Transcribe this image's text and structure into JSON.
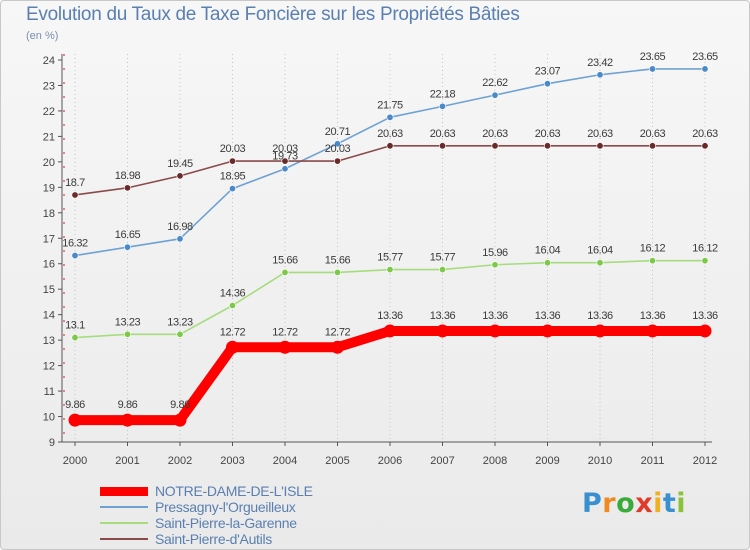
{
  "title": "Evolution du Taux de Taxe Foncière sur les Propriétés Bâties",
  "unit_label": "(en %)",
  "logo": {
    "letters": [
      {
        "ch": "P",
        "color": "#3a8fd0"
      },
      {
        "ch": "r",
        "color": "#f08a20"
      },
      {
        "ch": "o",
        "color": "#3aaa3a"
      },
      {
        "ch": "x",
        "color": "#e03a2a"
      },
      {
        "ch": "i",
        "color": "#f0b020"
      },
      {
        "ch": "t",
        "color": "#3a8fd0"
      },
      {
        "ch": "i",
        "color": "#8ac23a"
      }
    ]
  },
  "chart_data": {
    "type": "line",
    "title": "Evolution du Taux de Taxe Foncière sur les Propriétés Bâties",
    "ylabel": "(en %)",
    "xlabel": "",
    "x": [
      "2000",
      "2001",
      "2002",
      "2003",
      "2004",
      "2005",
      "2006",
      "2007",
      "2008",
      "2009",
      "2010",
      "2011",
      "2012"
    ],
    "ylim": [
      9,
      24
    ],
    "yticks": [
      9,
      10,
      11,
      12,
      13,
      14,
      15,
      16,
      17,
      18,
      19,
      20,
      21,
      22,
      23,
      24
    ],
    "grid": "vertical dotted",
    "legend_position": "bottom-left",
    "series": [
      {
        "name": "NOTRE-DAME-DE-L'ISLE",
        "color": "#ff0000",
        "emphasis": true,
        "values": [
          9.86,
          9.86,
          9.86,
          12.72,
          12.72,
          12.72,
          13.36,
          13.36,
          13.36,
          13.36,
          13.36,
          13.36,
          13.36
        ],
        "labels": [
          "9.86",
          "9.86",
          "9.86",
          "12.72",
          "12.72",
          "12.72",
          "13.36",
          "13.36",
          "13.36",
          "13.36",
          "13.36",
          "13.36",
          "13.36"
        ]
      },
      {
        "name": "Pressagny-l'Orgueilleux",
        "color": "#6fa1d2",
        "marker": "#4a8ac8",
        "values": [
          16.32,
          16.65,
          16.98,
          18.95,
          19.73,
          20.71,
          21.75,
          22.18,
          22.62,
          23.07,
          23.42,
          23.65,
          23.65
        ],
        "labels": [
          "16.32",
          "16.65",
          "16.98",
          "18.95",
          "19.73",
          "20.71",
          "21.75",
          "22.18",
          "22.62",
          "23.07",
          "23.42",
          "23.65",
          "23.65"
        ]
      },
      {
        "name": "Saint-Pierre-la-Garenne",
        "color": "#a6dc7e",
        "marker": "#7cc94a",
        "values": [
          13.1,
          13.23,
          13.23,
          14.36,
          15.66,
          15.66,
          15.77,
          15.77,
          15.96,
          16.04,
          16.04,
          16.12,
          16.12
        ],
        "labels": [
          "13.1",
          "13.23",
          "13.23",
          "14.36",
          "15.66",
          "15.66",
          "15.77",
          "15.77",
          "15.96",
          "16.04",
          "16.04",
          "16.12",
          "16.12"
        ]
      },
      {
        "name": "Saint-Pierre-d'Autils",
        "color": "#8a4a4a",
        "marker": "#6a2a2a",
        "values": [
          18.7,
          18.98,
          19.45,
          20.03,
          20.03,
          20.03,
          20.63,
          20.63,
          20.63,
          20.63,
          20.63,
          20.63,
          20.63
        ],
        "labels": [
          "18.7",
          "18.98",
          "19.45",
          "20.03",
          "20.03",
          "20.03",
          "20.63",
          "20.63",
          "20.63",
          "20.63",
          "20.63",
          "20.63",
          "20.63"
        ]
      }
    ]
  }
}
